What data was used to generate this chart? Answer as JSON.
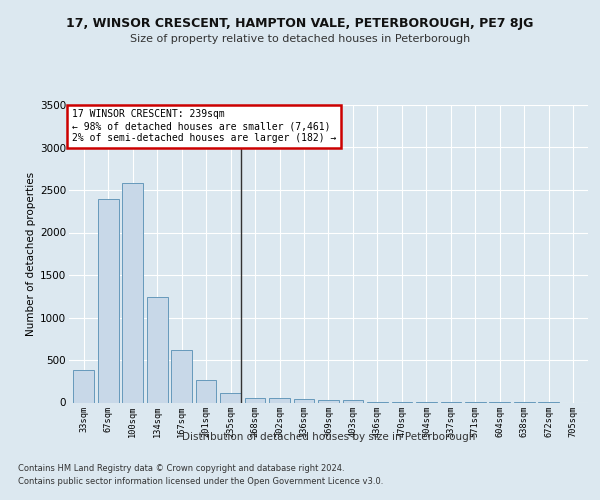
{
  "title1": "17, WINSOR CRESCENT, HAMPTON VALE, PETERBOROUGH, PE7 8JG",
  "title2": "Size of property relative to detached houses in Peterborough",
  "xlabel": "Distribution of detached houses by size in Peterborough",
  "ylabel": "Number of detached properties",
  "categories": [
    "33sqm",
    "67sqm",
    "100sqm",
    "134sqm",
    "167sqm",
    "201sqm",
    "235sqm",
    "268sqm",
    "302sqm",
    "336sqm",
    "369sqm",
    "403sqm",
    "436sqm",
    "470sqm",
    "504sqm",
    "537sqm",
    "571sqm",
    "604sqm",
    "638sqm",
    "672sqm",
    "705sqm"
  ],
  "values": [
    380,
    2390,
    2580,
    1240,
    620,
    260,
    110,
    55,
    50,
    40,
    25,
    25,
    5,
    2,
    1,
    1,
    1,
    1,
    1,
    1,
    0
  ],
  "bar_color": "#c8d8e8",
  "bar_edge_color": "#6699bb",
  "annotation_line1": "17 WINSOR CRESCENT: 239sqm",
  "annotation_line2": "← 98% of detached houses are smaller (7,461)",
  "annotation_line3": "2% of semi-detached houses are larger (182) →",
  "vline_color": "#333333",
  "annotation_box_color": "#ffffff",
  "annotation_box_edge": "#cc0000",
  "ylim": [
    0,
    3500
  ],
  "yticks": [
    0,
    500,
    1000,
    1500,
    2000,
    2500,
    3000,
    3500
  ],
  "footer1": "Contains HM Land Registry data © Crown copyright and database right 2024.",
  "footer2": "Contains public sector information licensed under the Open Government Licence v3.0.",
  "bg_color": "#dce8f0",
  "plot_bg_color": "#dce8f0"
}
